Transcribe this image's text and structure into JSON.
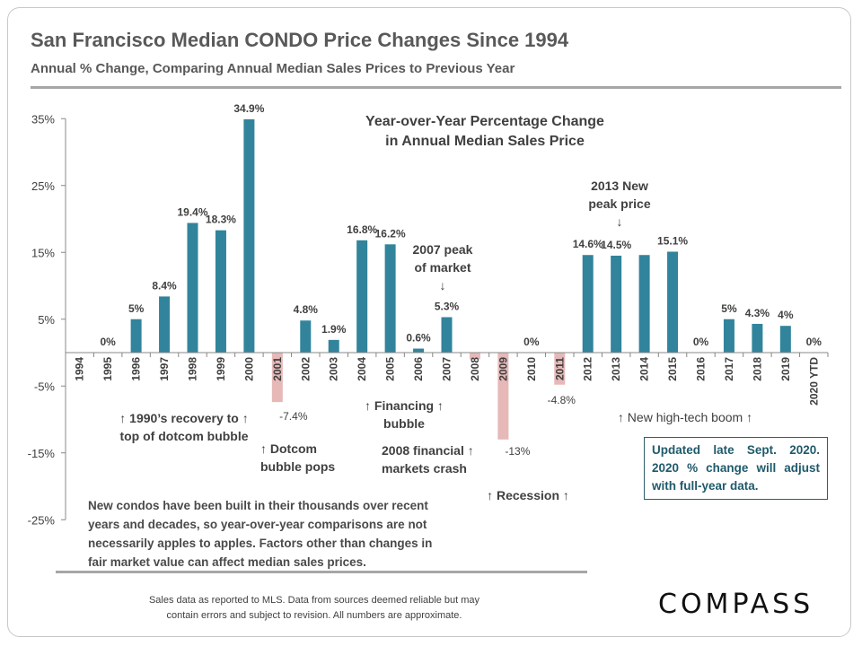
{
  "header": {
    "title": "San Francisco Median CONDO Price Changes Since 1994",
    "subtitle": "Annual % Change, Comparing Annual Median Sales Prices to Previous Year"
  },
  "chart_data": {
    "type": "bar",
    "title_line1": "Year-over-Year Percentage Change",
    "title_line2": "in Annual Median Sales Price",
    "categories": [
      "1994",
      "1995",
      "1996",
      "1997",
      "1998",
      "1999",
      "2000",
      "2001",
      "2002",
      "2003",
      "2004",
      "2005",
      "2006",
      "2007",
      "2008",
      "2009",
      "2010",
      "2011",
      "2012",
      "2013",
      "2014",
      "2015",
      "2016",
      "2017",
      "2018",
      "2019",
      "2020 YTD"
    ],
    "values": [
      null,
      0,
      5,
      8.4,
      19.4,
      18.3,
      34.9,
      -7.4,
      4.8,
      1.9,
      16.8,
      16.2,
      0.6,
      5.3,
      -1,
      -13,
      0,
      -4.8,
      14.6,
      14.5,
      14.6,
      15.1,
      0,
      5,
      4.3,
      4,
      0
    ],
    "data_labels": [
      "",
      "0%",
      "5%",
      "8.4%",
      "19.4%",
      "18.3%",
      "34.9%",
      "-7.4%",
      "4.8%",
      "1.9%",
      "16.8%",
      "16.2%",
      "0.6%",
      "5.3%",
      "",
      "-13%",
      "0%",
      "-4.8%",
      "14.6%",
      "14.5%",
      "",
      "15.1%",
      "0%",
      "5%",
      "4.3%",
      "4%",
      "0%"
    ],
    "yticks": [
      35,
      25,
      15,
      5,
      -5,
      -15,
      -25
    ],
    "ytick_labels": [
      "35%",
      "25%",
      "15%",
      "5%",
      "-5%",
      "-15%",
      "-25%"
    ],
    "ylim": [
      -25,
      35
    ],
    "grid": false,
    "colors": {
      "positive": "#31849b",
      "negative": "#e6b9b8"
    }
  },
  "annotations": {
    "peak2007": [
      "2007 peak",
      "of market",
      "↓"
    ],
    "peak2013": [
      "2013 New",
      "peak price",
      "↓"
    ],
    "recovery": [
      "↑ 1990’s recovery to ↑",
      "top of dotcom bubble"
    ],
    "dotcom": [
      "↑ Dotcom",
      "bubble pops"
    ],
    "financing": [
      "↑ Financing ↑",
      "bubble"
    ],
    "crash": [
      "2008 financial ↑",
      "markets crash"
    ],
    "recession": "↑  Recession  ↑",
    "hightech": "↑ New high-tech boom ↑"
  },
  "note": "Updated late Sept. 2020. 2020 % change will adjust with full-year data.",
  "paragraph": "New condos have been built in their thousands over recent years and decades, so year-over-year comparisons are not necessarily apples to apples. Factors other than changes in fair market value can affect median sales prices.",
  "footer": {
    "source_line1": "Sales data as reported to MLS. Data from sources deemed reliable but may",
    "source_line2": "contain errors and subject to revision. All numbers are approximate.",
    "logo": "COMPASS"
  }
}
